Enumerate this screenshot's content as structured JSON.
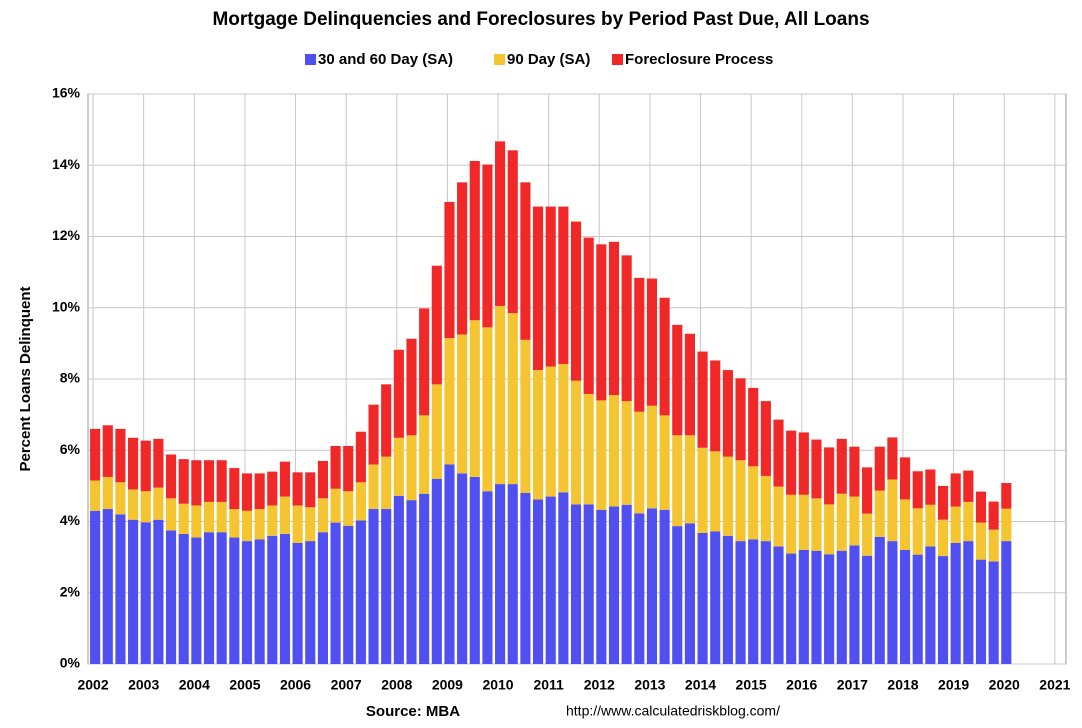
{
  "chart_data": {
    "type": "stacked_bar",
    "title": "Mortgage Delinquencies and Foreclosures by Period Past Due, All Loans",
    "y_label": "Percent Loans Delinquent",
    "source": "Source: MBA",
    "url": "http://www.calculatedriskblog.com/",
    "x": [
      2002,
      2002.25,
      2002.5,
      2002.75,
      2003,
      2003.25,
      2003.5,
      2003.75,
      2004,
      2004.25,
      2004.5,
      2004.75,
      2005,
      2005.25,
      2005.5,
      2005.75,
      2006,
      2006.25,
      2006.5,
      2006.75,
      2007,
      2007.25,
      2007.5,
      2007.75,
      2008,
      2008.25,
      2008.5,
      2008.75,
      2009,
      2009.25,
      2009.5,
      2009.75,
      2010,
      2010.25,
      2010.5,
      2010.75,
      2011,
      2011.25,
      2011.5,
      2011.75,
      2012,
      2012.25,
      2012.5,
      2012.75,
      2013,
      2013.25,
      2013.5,
      2013.75,
      2014,
      2014.25,
      2014.5,
      2014.75,
      2015,
      2015.25,
      2015.5,
      2015.75,
      2016,
      2016.25,
      2016.5,
      2016.75,
      2017,
      2017.25,
      2017.5,
      2017.75,
      2018,
      2018.25,
      2018.5,
      2018.75,
      2019,
      2019.25,
      2019.5,
      2019.75,
      2020
    ],
    "series": [
      {
        "name": "30 and 60 Day (SA)",
        "color": "#5050f0",
        "values": [
          4.3,
          4.35,
          4.2,
          4.05,
          3.98,
          4.05,
          3.75,
          3.65,
          3.55,
          3.7,
          3.7,
          3.55,
          3.45,
          3.5,
          3.6,
          3.65,
          3.4,
          3.45,
          3.7,
          3.97,
          3.88,
          4.03,
          4.35,
          4.35,
          4.72,
          4.6,
          4.78,
          5.2,
          5.6,
          5.35,
          5.25,
          4.85,
          5.05,
          5.05,
          4.8,
          4.62,
          4.7,
          4.82,
          4.48,
          4.48,
          4.33,
          4.42,
          4.47,
          4.23,
          4.37,
          4.33,
          3.87,
          3.95,
          3.68,
          3.72,
          3.6,
          3.45,
          3.5,
          3.45,
          3.3,
          3.1,
          3.2,
          3.18,
          3.08,
          3.18,
          3.33,
          3.04,
          3.57,
          3.45,
          3.2,
          3.07,
          3.3,
          3.03,
          3.4,
          3.45,
          2.93,
          2.88,
          3.45
        ]
      },
      {
        "name": "90 Day (SA)",
        "color": "#f5c431",
        "values": [
          0.85,
          0.9,
          0.9,
          0.85,
          0.87,
          0.9,
          0.9,
          0.85,
          0.9,
          0.85,
          0.85,
          0.8,
          0.85,
          0.85,
          0.85,
          1.05,
          1.05,
          0.95,
          0.95,
          0.95,
          0.97,
          1.07,
          1.25,
          1.47,
          1.63,
          1.82,
          2.2,
          2.65,
          3.55,
          3.9,
          4.4,
          4.6,
          5.0,
          4.8,
          4.3,
          3.63,
          3.65,
          3.6,
          3.47,
          3.1,
          3.07,
          3.13,
          2.91,
          2.85,
          2.88,
          2.65,
          2.55,
          2.47,
          2.39,
          2.25,
          2.22,
          2.27,
          2.05,
          1.83,
          1.68,
          1.65,
          1.55,
          1.47,
          1.4,
          1.6,
          1.37,
          1.18,
          1.3,
          1.73,
          1.42,
          1.3,
          1.17,
          1.02,
          1.02,
          1.1,
          1.04,
          0.89,
          0.91
        ]
      },
      {
        "name": "Foreclosure Process",
        "color": "#f02828",
        "values": [
          1.45,
          1.45,
          1.5,
          1.45,
          1.42,
          1.37,
          1.23,
          1.25,
          1.27,
          1.17,
          1.17,
          1.15,
          1.05,
          1.0,
          0.95,
          0.98,
          0.93,
          0.98,
          1.05,
          1.2,
          1.27,
          1.42,
          1.68,
          2.03,
          2.47,
          2.71,
          3.0,
          3.33,
          3.82,
          4.27,
          4.47,
          4.57,
          4.62,
          4.57,
          4.42,
          4.59,
          4.49,
          4.42,
          4.47,
          4.39,
          4.38,
          4.3,
          4.09,
          3.76,
          3.57,
          3.3,
          3.1,
          2.85,
          2.7,
          2.55,
          2.43,
          2.3,
          2.2,
          2.1,
          1.88,
          1.8,
          1.75,
          1.65,
          1.6,
          1.54,
          1.4,
          1.3,
          1.23,
          1.18,
          1.18,
          1.04,
          0.99,
          0.95,
          0.93,
          0.88,
          0.87,
          0.79,
          0.72
        ]
      }
    ],
    "xlim": [
      2001.9,
      2021.22
    ],
    "xticks": [
      2002,
      2003,
      2004,
      2005,
      2006,
      2007,
      2008,
      2009,
      2010,
      2011,
      2012,
      2013,
      2014,
      2015,
      2016,
      2017,
      2018,
      2019,
      2020,
      2021
    ],
    "ylim": [
      0,
      16
    ],
    "yticks": [
      {
        "value": 0,
        "label": "0%"
      },
      {
        "value": 2,
        "label": "2%"
      },
      {
        "value": 4,
        "label": "4%"
      },
      {
        "value": 6,
        "label": "6%"
      },
      {
        "value": 8,
        "label": "8%"
      },
      {
        "value": 10,
        "label": "10%"
      },
      {
        "value": 12,
        "label": "12%"
      },
      {
        "value": 14,
        "label": "14%"
      },
      {
        "value": 16,
        "label": "16%"
      }
    ],
    "grid": true,
    "legend": "top"
  }
}
